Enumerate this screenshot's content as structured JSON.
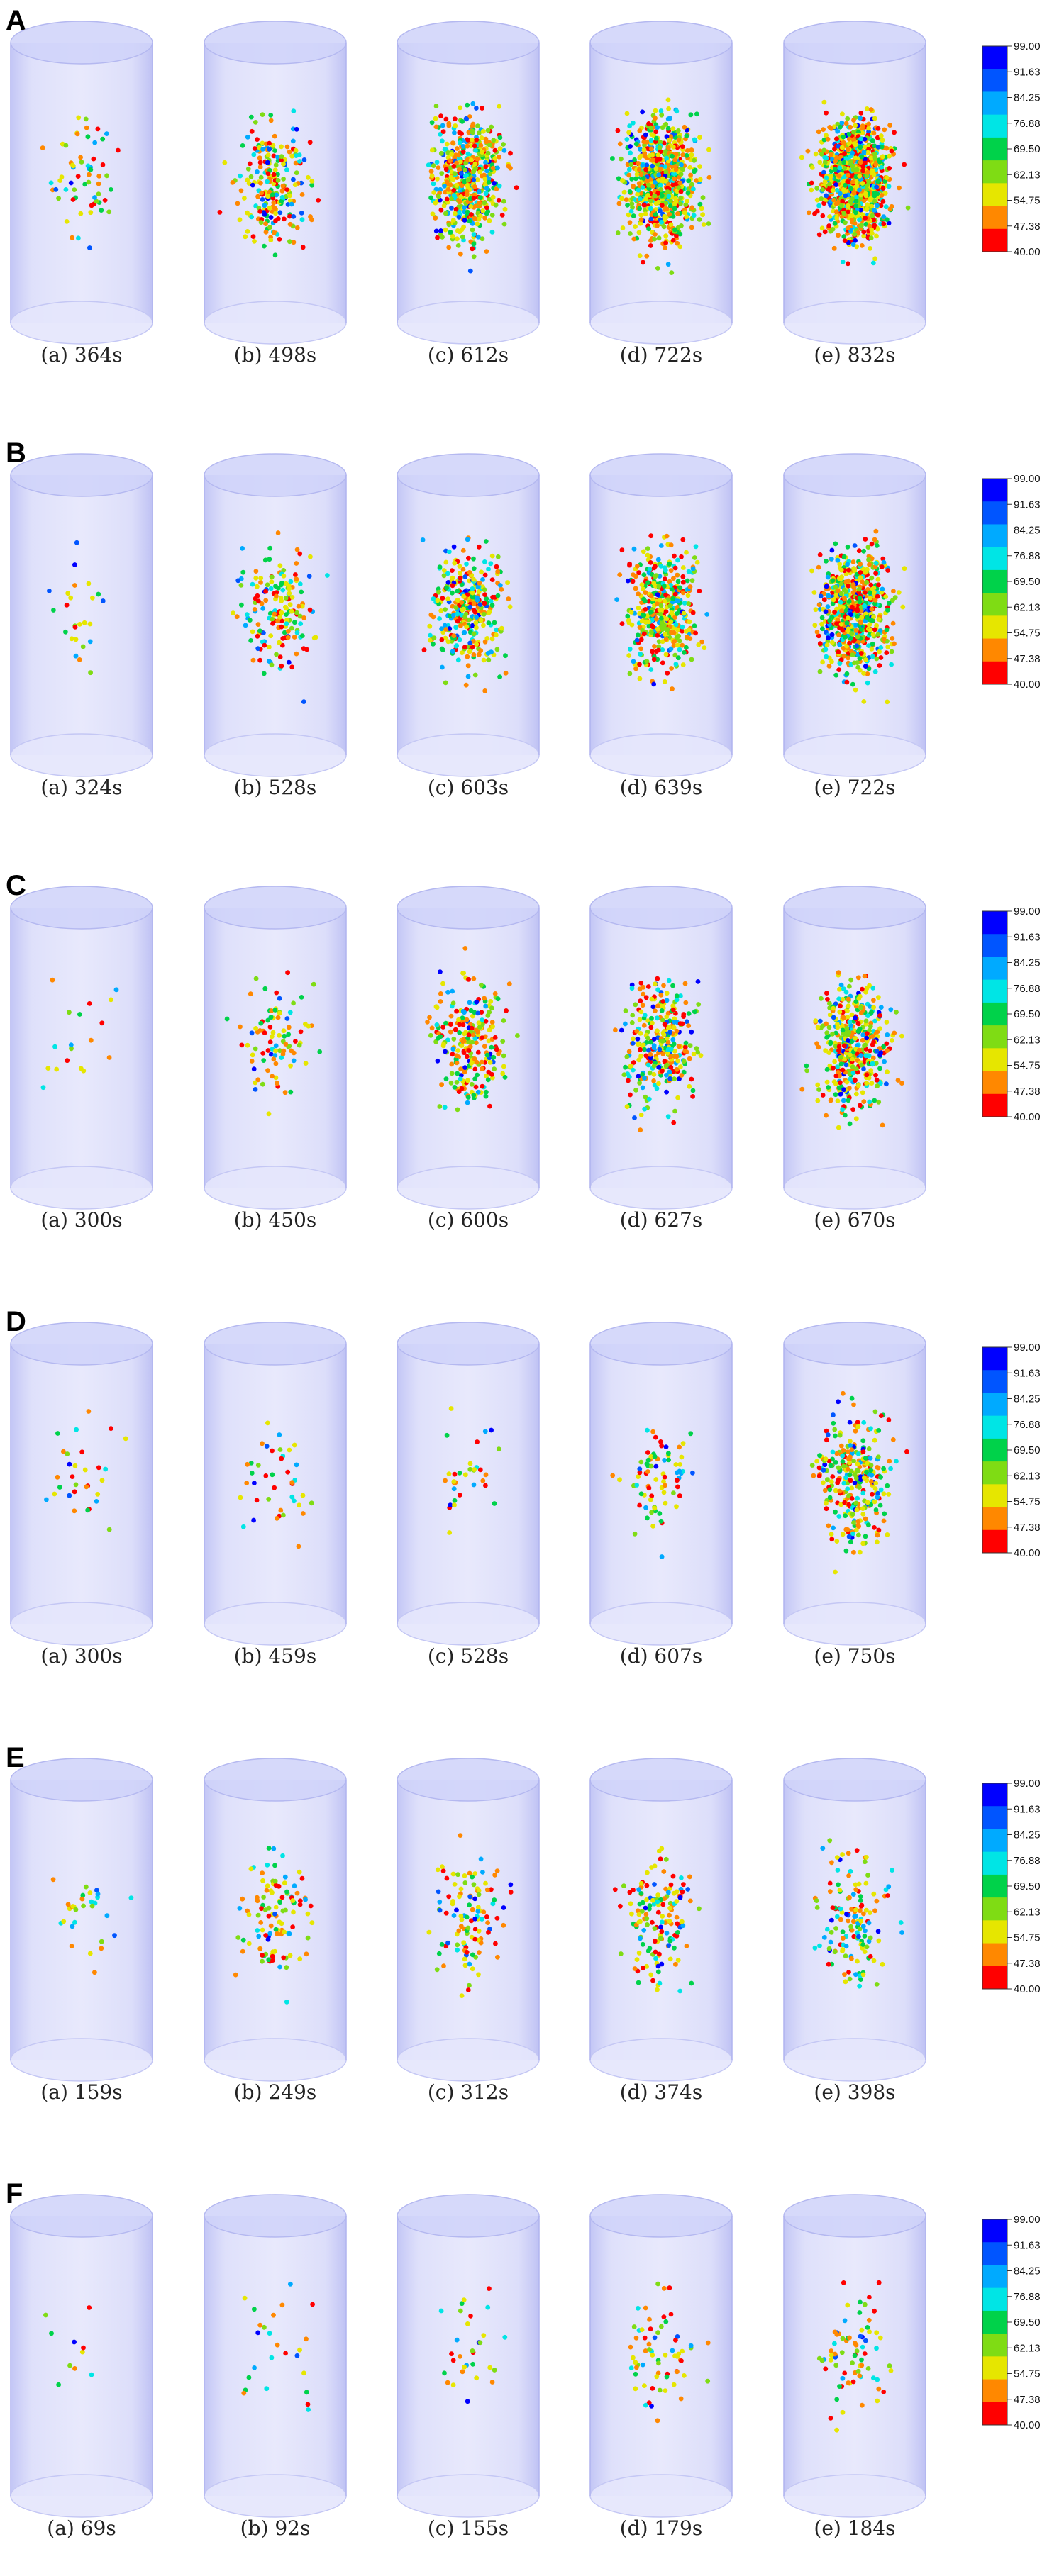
{
  "figure": {
    "colorbar_ticks": [
      "99.00",
      "91.63",
      "84.25",
      "76.88",
      "69.50",
      "62.13",
      "54.75",
      "47.38",
      "40.00"
    ],
    "colorbar_colors": [
      "#0000ff",
      "#0055ff",
      "#00aaff",
      "#00e5e5",
      "#00d24a",
      "#7fdc14",
      "#e6e600",
      "#ff8800",
      "#ff0000"
    ],
    "cylinder_fill": "#b8bcf5",
    "panels": [
      {
        "label": "A",
        "captions": [
          "(a) 364s",
          "(b) 498s",
          "(c) 612s",
          "(d) 722s",
          "(e) 832s"
        ],
        "density": [
          60,
          220,
          520,
          720,
          950
        ]
      },
      {
        "label": "B",
        "captions": [
          "(a) 324s",
          "(b) 528s",
          "(c) 603s",
          "(d) 639s",
          "(e) 722s"
        ],
        "density": [
          25,
          170,
          330,
          420,
          650
        ]
      },
      {
        "label": "C",
        "captions": [
          "(a) 300s",
          "(b) 450s",
          "(c) 600s",
          "(d) 627s",
          "(e) 670s"
        ],
        "density": [
          18,
          90,
          250,
          300,
          430
        ]
      },
      {
        "label": "D",
        "captions": [
          "(a) 300s",
          "(b) 459s",
          "(c) 528s",
          "(d) 607s",
          "(e) 750s"
        ],
        "density": [
          30,
          40,
          32,
          75,
          300
        ]
      },
      {
        "label": "E",
        "captions": [
          "(a) 159s",
          "(b) 249s",
          "(c) 312s",
          "(d) 374s",
          "(e) 398s"
        ],
        "density": [
          30,
          110,
          110,
          150,
          140
        ]
      },
      {
        "label": "F",
        "captions": [
          "(a) 69s",
          "(b) 92s",
          "(c) 155s",
          "(d) 179s",
          "(e) 184s"
        ],
        "density": [
          10,
          25,
          30,
          65,
          75
        ]
      }
    ]
  }
}
